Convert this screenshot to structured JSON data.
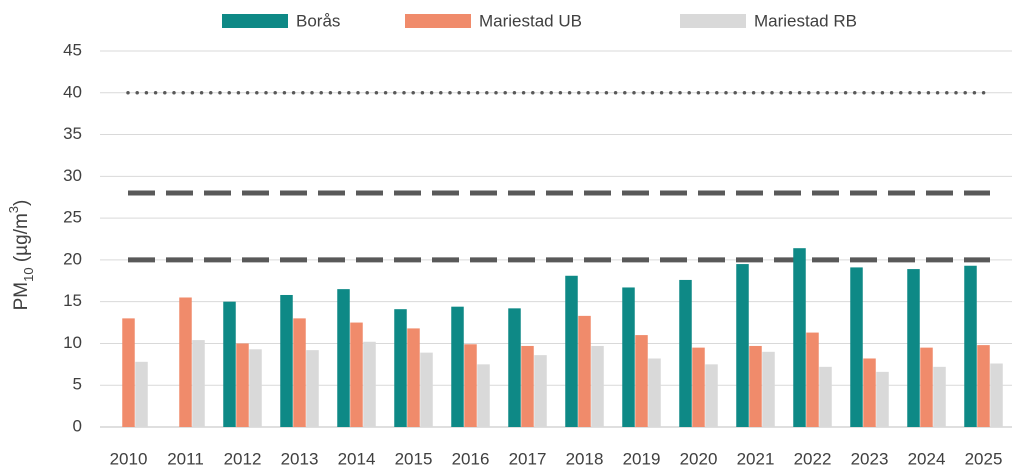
{
  "chart_data": {
    "type": "bar",
    "y_label": {
      "base": "PM",
      "sub": "10",
      "mid": " (µg/m",
      "sup": "3",
      "end": ")"
    },
    "categories": [
      "2010",
      "2011",
      "2012",
      "2013",
      "2014",
      "2015",
      "2016",
      "2017",
      "2018",
      "2019",
      "2020",
      "2021",
      "2022",
      "2023",
      "2024",
      "2025"
    ],
    "series": [
      {
        "name": "Borås",
        "color": "#0e8986",
        "values": [
          null,
          null,
          15.0,
          15.8,
          16.5,
          14.1,
          14.4,
          14.2,
          18.1,
          16.7,
          17.6,
          19.5,
          21.4,
          19.1,
          18.9,
          19.3
        ]
      },
      {
        "name": "Mariestad UB",
        "color": "#f08b6b",
        "values": [
          13.0,
          15.5,
          10.0,
          13.0,
          12.5,
          11.8,
          9.9,
          9.7,
          13.3,
          11.0,
          9.5,
          9.7,
          11.3,
          8.2,
          9.5,
          9.8
        ]
      },
      {
        "name": "Mariestad RB",
        "color": "#d9d9d9",
        "values": [
          7.8,
          10.4,
          9.3,
          9.2,
          10.2,
          8.9,
          7.5,
          8.6,
          9.7,
          8.2,
          7.5,
          9.0,
          7.2,
          6.6,
          7.2,
          7.6
        ]
      }
    ],
    "reference_lines": [
      {
        "value": 40,
        "style": "dotted"
      },
      {
        "value": 28,
        "style": "dashed"
      },
      {
        "value": 20,
        "style": "dashed"
      }
    ],
    "ylim": [
      0,
      45
    ],
    "yticks": [
      0,
      5,
      10,
      15,
      20,
      25,
      30,
      35,
      40,
      45
    ],
    "grid": true,
    "legend": "top"
  }
}
